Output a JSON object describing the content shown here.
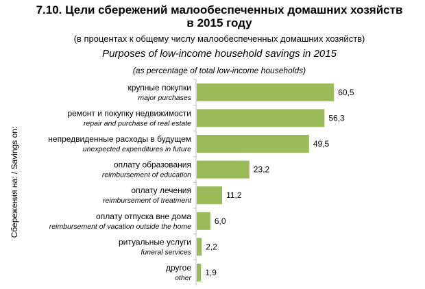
{
  "title_line1": "7.10. Цели сбережений малообеспеченных домашних хозяйств",
  "title_line2": "в 2015 году",
  "subtitle": "(в процентах к общему числу малообеспеченных домашних хозяйств)",
  "title_en": "Purposes of low-income household savings in 2015",
  "subtitle_en": "(as percentage of total low-income households)",
  "colors": {
    "bar": "#9bbb59",
    "axis": "#bfbfbf"
  },
  "chart_data": {
    "type": "bar",
    "orientation": "horizontal",
    "ylabel": "Сбережения на: / Savings on:",
    "categories": [
      {
        "ru": "крупные покупки",
        "en": "major purchases"
      },
      {
        "ru": "ремонт и покупку недвижимости",
        "en": "repair and purchase of real estate"
      },
      {
        "ru": "непредвиденные расходы в будущем",
        "en": "unexpected expenditures in future"
      },
      {
        "ru": "оплату образования",
        "en": "reimbursement of education"
      },
      {
        "ru": "оплату лечения",
        "en": "reimbursement of treatment"
      },
      {
        "ru": "оплату отпуска вне дома",
        "en": "reimbursement of vacation outside the home"
      },
      {
        "ru": "ритуальные услуги",
        "en": "funeral services"
      },
      {
        "ru": "другое",
        "en": "other"
      }
    ],
    "values": [
      60.5,
      56.3,
      49.5,
      23.2,
      11.2,
      6.0,
      2.2,
      1.9
    ],
    "value_labels": [
      "60,5",
      "56,3",
      "49,5",
      "23,2",
      "11,2",
      "6,0",
      "2,2",
      "1,9"
    ],
    "xlim": [
      0,
      70
    ]
  }
}
